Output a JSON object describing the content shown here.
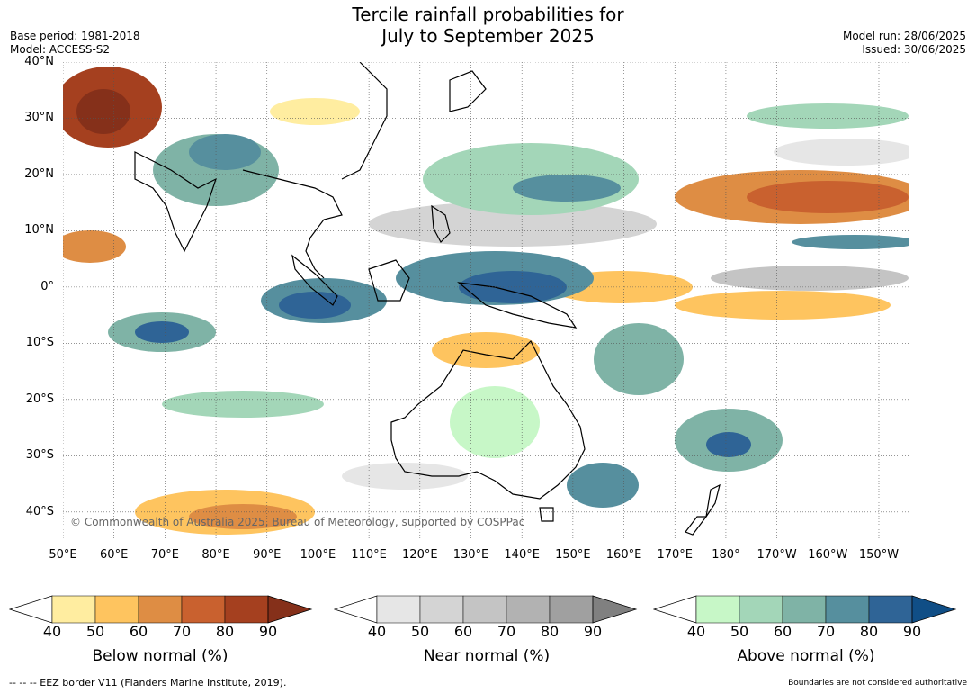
{
  "title_line1": "Tercile rainfall probabilities for",
  "title_line2": "July to September 2025",
  "base_period": "Base period: 1981-2018",
  "model": "Model: ACCESS-S2",
  "model_run": "Model run: 28/06/2025",
  "issued": "Issued: 30/06/2025",
  "copyright": "© Commonwealth of Australia 2025, Bureau of Meteorology, supported by COSPPac",
  "lat_labels": [
    "40°N",
    "30°N",
    "20°N",
    "10°N",
    "0°",
    "10°S",
    "20°S",
    "30°S",
    "40°S"
  ],
  "lat_values": [
    40,
    30,
    20,
    10,
    0,
    -10,
    -20,
    -30,
    -40
  ],
  "lon_labels": [
    "50°E",
    "60°E",
    "70°E",
    "80°E",
    "90°E",
    "100°E",
    "110°E",
    "120°E",
    "130°E",
    "140°E",
    "150°E",
    "160°E",
    "170°E",
    "180°",
    "170°W",
    "160°W",
    "150°W"
  ],
  "lon_values": [
    50,
    60,
    70,
    80,
    90,
    100,
    110,
    120,
    130,
    140,
    150,
    160,
    170,
    180,
    190,
    200,
    210
  ],
  "map_extent": {
    "lon_min": 50,
    "lon_max": 216,
    "lat_min": -45,
    "lat_max": 40
  },
  "colorbars": [
    {
      "title": "Below normal (%)",
      "ticks": [
        "40",
        "50",
        "60",
        "70",
        "80",
        "90"
      ],
      "colors": [
        "#ffeda0",
        "#fec45f",
        "#de8d44",
        "#c9612f",
        "#a5401f"
      ],
      "end_color": "#85301a"
    },
    {
      "title": "Near normal (%)",
      "ticks": [
        "40",
        "50",
        "60",
        "70",
        "80",
        "90"
      ],
      "colors": [
        "#e6e6e6",
        "#d4d4d4",
        "#c4c4c4",
        "#b2b2b2",
        "#a0a0a0"
      ],
      "end_color": "#808080"
    },
    {
      "title": "Above normal (%)",
      "ticks": [
        "40",
        "50",
        "60",
        "70",
        "80",
        "90"
      ],
      "colors": [
        "#c7f7c7",
        "#a3d6b8",
        "#7fb3a6",
        "#568f9e",
        "#2f6496"
      ],
      "end_color": "#104e86"
    }
  ],
  "footer_left": "--  --  -- EEZ border V11 (Flanders Marine Institute, 2019).",
  "footer_right": "Boundaries are not considered authoritative"
}
